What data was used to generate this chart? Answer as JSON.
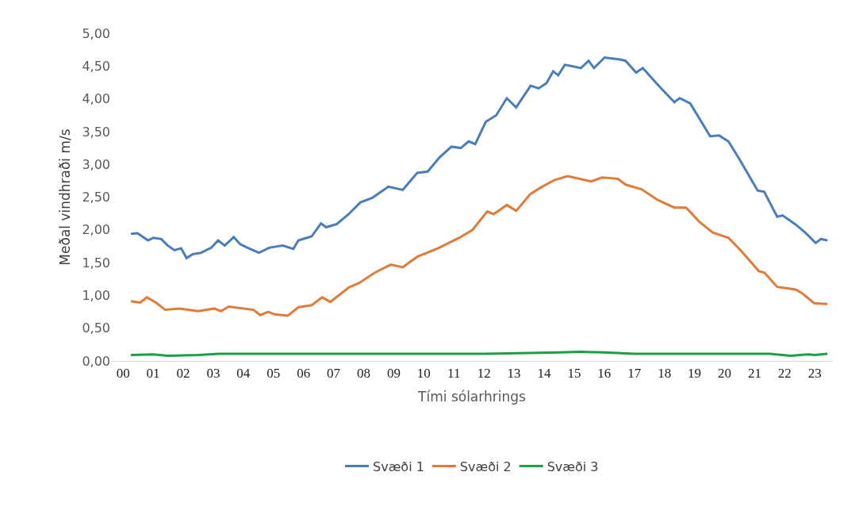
{
  "chart_data": {
    "type": "line",
    "xlabel": "Tími sólarhrings",
    "ylabel": "Meðal vindhraði m/s",
    "xlim": [
      -0.4,
      23.6
    ],
    "xticks": [
      {
        "value": 0,
        "label": "00"
      },
      {
        "value": 1,
        "label": "01"
      },
      {
        "value": 2,
        "label": "02"
      },
      {
        "value": 3,
        "label": "03"
      },
      {
        "value": 4,
        "label": "04"
      },
      {
        "value": 5,
        "label": "05"
      },
      {
        "value": 6,
        "label": "06"
      },
      {
        "value": 7,
        "label": "07"
      },
      {
        "value": 8,
        "label": "08"
      },
      {
        "value": 9,
        "label": "09"
      },
      {
        "value": 10,
        "label": "10"
      },
      {
        "value": 11,
        "label": "11"
      },
      {
        "value": 12,
        "label": "12"
      },
      {
        "value": 13,
        "label": "13"
      },
      {
        "value": 14,
        "label": "14"
      },
      {
        "value": 15,
        "label": "15"
      },
      {
        "value": 16,
        "label": "16"
      },
      {
        "value": 17,
        "label": "17"
      },
      {
        "value": 18,
        "label": "18"
      },
      {
        "value": 19,
        "label": "19"
      },
      {
        "value": 20,
        "label": "20"
      },
      {
        "value": 21,
        "label": "21"
      },
      {
        "value": 22,
        "label": "22"
      },
      {
        "value": 23,
        "label": "23"
      }
    ],
    "ylim": [
      0,
      5
    ],
    "yticks": [
      {
        "value": 0,
        "label": "0,00"
      },
      {
        "value": 0.5,
        "label": "0,50"
      },
      {
        "value": 1,
        "label": "1,00"
      },
      {
        "value": 1.5,
        "label": "1,50"
      },
      {
        "value": 2,
        "label": "2,00"
      },
      {
        "value": 2.5,
        "label": "2,50"
      },
      {
        "value": 3,
        "label": "3,00"
      },
      {
        "value": 3.5,
        "label": "3,50"
      },
      {
        "value": 4,
        "label": "4,00"
      },
      {
        "value": 4.5,
        "label": "4,50"
      },
      {
        "value": 5,
        "label": "5,00"
      }
    ],
    "grid": false,
    "legend": "bottom",
    "marker": "none",
    "line_style": "solid",
    "series": [
      {
        "name": "Svæði 1",
        "color": "#4a7ebb",
        "x": [
          0.26,
          0.48,
          0.83,
          1.01,
          1.27,
          1.49,
          1.71,
          1.93,
          2.11,
          2.32,
          2.59,
          2.94,
          3.16,
          3.38,
          3.68,
          3.9,
          4.17,
          4.52,
          4.87,
          5.31,
          5.66,
          5.83,
          6.27,
          6.58,
          6.75,
          7.11,
          7.5,
          7.89,
          8.29,
          8.82,
          9.3,
          9.78,
          10.13,
          10.53,
          10.92,
          11.23,
          11.49,
          11.71,
          12.06,
          12.41,
          12.76,
          13.07,
          13.55,
          13.82,
          14.08,
          14.3,
          14.47,
          14.69,
          15.22,
          15.48,
          15.66,
          16.01,
          16.53,
          16.71,
          17.06,
          17.28,
          17.85,
          18.33,
          18.51,
          18.86,
          19.52,
          19.82,
          20.13,
          20.48,
          21.1,
          21.32,
          21.75,
          21.93,
          22.37,
          22.68,
          23.03,
          23.2,
          23.42
        ],
        "values": [
          1.94,
          1.95,
          1.84,
          1.88,
          1.86,
          1.76,
          1.69,
          1.72,
          1.57,
          1.63,
          1.65,
          1.73,
          1.84,
          1.76,
          1.89,
          1.78,
          1.72,
          1.65,
          1.73,
          1.76,
          1.71,
          1.84,
          1.9,
          2.1,
          2.04,
          2.09,
          2.24,
          2.42,
          2.49,
          2.66,
          2.61,
          2.87,
          2.89,
          3.11,
          3.27,
          3.25,
          3.35,
          3.31,
          3.65,
          3.75,
          4.01,
          3.87,
          4.2,
          4.16,
          4.24,
          4.42,
          4.36,
          4.52,
          4.47,
          4.58,
          4.47,
          4.63,
          4.6,
          4.58,
          4.4,
          4.47,
          4.18,
          3.95,
          4.01,
          3.93,
          3.43,
          3.44,
          3.35,
          3.09,
          2.6,
          2.58,
          2.2,
          2.22,
          2.08,
          1.96,
          1.8,
          1.86,
          1.84
        ]
      },
      {
        "name": "Svæði 2",
        "color": "#e07b39",
        "x": [
          0.26,
          0.57,
          0.79,
          1.1,
          1.4,
          1.89,
          2.5,
          3.03,
          3.25,
          3.51,
          4.34,
          4.56,
          4.83,
          5.04,
          5.48,
          5.83,
          6.27,
          6.62,
          6.89,
          7.5,
          7.85,
          8.38,
          8.9,
          9.3,
          9.78,
          10.48,
          11.18,
          11.62,
          12.11,
          12.32,
          12.76,
          13.07,
          13.55,
          13.9,
          14.34,
          14.78,
          15.57,
          15.92,
          16.45,
          16.71,
          17.24,
          17.76,
          18.33,
          18.72,
          19.17,
          19.61,
          20.13,
          20.57,
          21.14,
          21.32,
          21.75,
          22.37,
          22.59,
          22.98,
          23.42
        ],
        "values": [
          0.91,
          0.89,
          0.97,
          0.89,
          0.78,
          0.8,
          0.76,
          0.8,
          0.76,
          0.83,
          0.78,
          0.7,
          0.75,
          0.71,
          0.69,
          0.82,
          0.85,
          0.97,
          0.9,
          1.12,
          1.19,
          1.35,
          1.47,
          1.43,
          1.59,
          1.72,
          1.88,
          2.0,
          2.28,
          2.24,
          2.38,
          2.29,
          2.55,
          2.65,
          2.76,
          2.82,
          2.74,
          2.8,
          2.78,
          2.69,
          2.62,
          2.46,
          2.34,
          2.34,
          2.12,
          1.96,
          1.88,
          1.67,
          1.37,
          1.35,
          1.13,
          1.09,
          1.03,
          0.88,
          0.87
        ]
      },
      {
        "name": "Svæði 3",
        "color": "#1e9e48",
        "x": [
          0.26,
          1.0,
          1.5,
          2.5,
          3.2,
          6.0,
          9.0,
          12.0,
          13.5,
          14.5,
          15.2,
          16.0,
          17.0,
          21.5,
          22.2,
          22.8,
          23.0,
          23.42
        ],
        "values": [
          0.09,
          0.1,
          0.08,
          0.09,
          0.11,
          0.11,
          0.11,
          0.11,
          0.12,
          0.13,
          0.14,
          0.13,
          0.11,
          0.11,
          0.08,
          0.1,
          0.09,
          0.11
        ]
      }
    ]
  }
}
